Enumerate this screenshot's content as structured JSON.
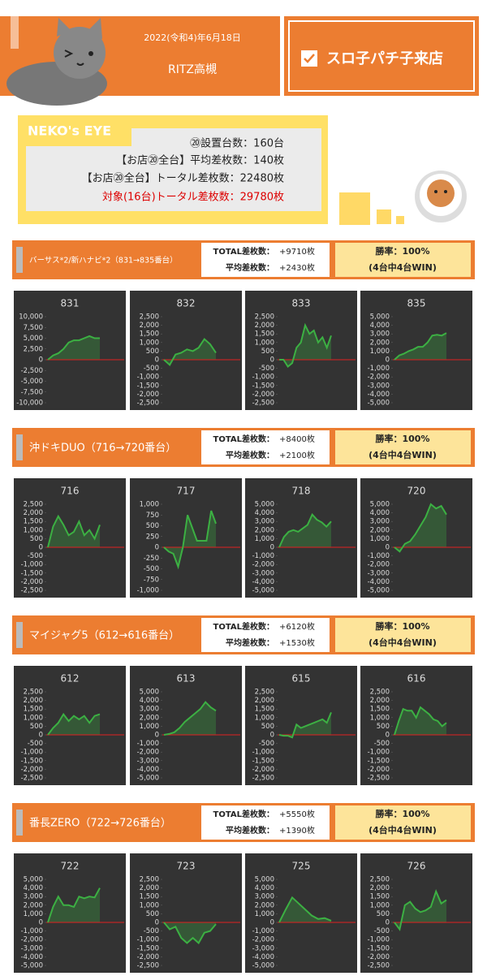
{
  "header": {
    "date": "2022(令和4)年6月18日",
    "store": "RITZ高槻",
    "event": "スロ子パチ子来店"
  },
  "neko": {
    "title": "NEKO's EYE",
    "lines": [
      "⑳設置台数：160台",
      "【お店⑳全台】平均差枚数：140枚",
      "【お店⑳全台】トータル差枚数：22480枚",
      "対象(16台)トータル差枚数：29780枚"
    ]
  },
  "sections": [
    {
      "title": "バーサス*2/新ハナビ*2（831→835番台）",
      "total_label": "TOTAL差枚数：",
      "total": "+9710枚",
      "avg_label": "平均差枚数：",
      "avg": "+2430枚",
      "win_rate": "勝率：100%",
      "win_note": "(4台中4台WIN)"
    },
    {
      "title": "沖ドキDUO（716→720番台）",
      "total_label": "TOTAL差枚数：",
      "total": "+8400枚",
      "avg_label": "平均差枚数：",
      "avg": "+2100枚",
      "win_rate": "勝率：100%",
      "win_note": "(4台中4台WIN)"
    },
    {
      "title": "マイジャグ5（612→616番台）",
      "total_label": "TOTAL差枚数：",
      "total": "+6120枚",
      "avg_label": "平均差枚数：",
      "avg": "+1530枚",
      "win_rate": "勝率：100%",
      "win_note": "(4台中4台WIN)"
    },
    {
      "title": "番長ZERO（722→726番台）",
      "total_label": "TOTAL差枚数：",
      "total": "+5550枚",
      "avg_label": "平均差枚数：",
      "avg": "+1390枚",
      "win_rate": "勝率：100%",
      "win_note": "(4台中4台WIN)"
    }
  ],
  "chart_data": [
    {
      "type": "line",
      "title": "831",
      "color": "#3cb043",
      "values": [
        0,
        1000,
        1500,
        2500,
        4000,
        4500,
        4500,
        5000,
        5500,
        5000,
        5000
      ],
      "ylim": [
        -10000,
        10000
      ],
      "yticks": [
        {
          "value": 10000,
          "label": "10,000"
        },
        {
          "value": 7500,
          "label": "7,500"
        },
        {
          "value": 5000,
          "label": "5,000"
        },
        {
          "value": 2500,
          "label": "2,500"
        },
        0,
        {
          "value": -2500,
          "label": "-2,500"
        },
        {
          "value": -5000,
          "label": "-5,000"
        },
        {
          "value": -7500,
          "label": "-7,500"
        },
        {
          "value": -10000,
          "label": "-10,000"
        }
      ]
    },
    {
      "type": "line",
      "title": "832",
      "color": "#3cb043",
      "values": [
        0,
        -300,
        300,
        400,
        600,
        500,
        700,
        1200,
        900,
        400
      ],
      "ylim": [
        -2500,
        2500
      ],
      "yticks": [
        {
          "value": 2500,
          "label": "2,500"
        },
        {
          "value": 2000,
          "label": "2,000"
        },
        {
          "value": 1500,
          "label": "1,500"
        },
        {
          "value": 1000,
          "label": "1,000"
        },
        500,
        0,
        -500,
        {
          "value": -1000,
          "label": "-1,000"
        },
        {
          "value": -1500,
          "label": "-1,500"
        },
        {
          "value": -2000,
          "label": "-2,000"
        },
        {
          "value": -2500,
          "label": "-2,500"
        }
      ]
    },
    {
      "type": "line",
      "title": "833",
      "color": "#3cb043",
      "values": [
        0,
        0,
        -400,
        -200,
        700,
        1000,
        2000,
        1500,
        1700,
        1000,
        1300,
        700,
        1400
      ],
      "ylim": [
        -2500,
        2500
      ],
      "yticks": [
        {
          "value": 2500,
          "label": "2,500"
        },
        {
          "value": 2000,
          "label": "2,000"
        },
        {
          "value": 1500,
          "label": "1,500"
        },
        {
          "value": 1000,
          "label": "1,000"
        },
        500,
        0,
        -500,
        {
          "value": -1000,
          "label": "-1,000"
        },
        {
          "value": -1500,
          "label": "-1,500"
        },
        {
          "value": -2000,
          "label": "-2,000"
        },
        {
          "value": -2500,
          "label": "-2,500"
        }
      ]
    },
    {
      "type": "line",
      "title": "835",
      "color": "#3cb043",
      "values": [
        0,
        500,
        700,
        1000,
        1200,
        1500,
        1500,
        2000,
        2800,
        2900,
        2800,
        3100
      ],
      "ylim": [
        -5000,
        5000
      ],
      "yticks": [
        {
          "value": 5000,
          "label": "5,000"
        },
        {
          "value": 4000,
          "label": "4,000"
        },
        {
          "value": 3000,
          "label": "3,000"
        },
        {
          "value": 2000,
          "label": "2,000"
        },
        {
          "value": 1000,
          "label": "1,000"
        },
        0,
        {
          "value": -1000,
          "label": "-1,000"
        },
        {
          "value": -2000,
          "label": "-2,000"
        },
        {
          "value": -3000,
          "label": "-3,000"
        },
        {
          "value": -4000,
          "label": "-4,000"
        },
        {
          "value": -5000,
          "label": "-5,000"
        }
      ]
    },
    {
      "type": "line",
      "title": "716",
      "color": "#3cb043",
      "values": [
        0,
        1200,
        1800,
        1300,
        700,
        900,
        1500,
        700,
        1000,
        500,
        1300
      ],
      "ylim": [
        -2500,
        2500
      ],
      "yticks": [
        {
          "value": 2500,
          "label": "2,500"
        },
        {
          "value": 2000,
          "label": "2,000"
        },
        {
          "value": 1500,
          "label": "1,500"
        },
        {
          "value": 1000,
          "label": "1,000"
        },
        500,
        0,
        -500,
        {
          "value": -1000,
          "label": "-1,000"
        },
        {
          "value": -1500,
          "label": "-1,500"
        },
        {
          "value": -2000,
          "label": "-2,000"
        },
        {
          "value": -2500,
          "label": "-2,500"
        }
      ]
    },
    {
      "type": "line",
      "title": "717",
      "color": "#3cb043",
      "values": [
        0,
        -100,
        -150,
        -450,
        0,
        750,
        450,
        150,
        150,
        150,
        850,
        550
      ],
      "ylim": [
        -1000,
        1000
      ],
      "yticks": [
        {
          "value": 1000,
          "label": "1,000"
        },
        750,
        500,
        250,
        0,
        -250,
        -500,
        -750,
        {
          "value": -1000,
          "label": "-1,000"
        }
      ]
    },
    {
      "type": "line",
      "title": "718",
      "color": "#3cb043",
      "values": [
        0,
        1200,
        1800,
        2000,
        1800,
        2200,
        2600,
        3800,
        3200,
        2900,
        2400,
        3000
      ],
      "ylim": [
        -5000,
        5000
      ],
      "yticks": [
        {
          "value": 5000,
          "label": "5,000"
        },
        {
          "value": 4000,
          "label": "4,000"
        },
        {
          "value": 3000,
          "label": "3,000"
        },
        {
          "value": 2000,
          "label": "2,000"
        },
        {
          "value": 1000,
          "label": "1,000"
        },
        0,
        {
          "value": -1000,
          "label": "-1,000"
        },
        {
          "value": -2000,
          "label": "-2,000"
        },
        {
          "value": -3000,
          "label": "-3,000"
        },
        {
          "value": -4000,
          "label": "-4,000"
        },
        {
          "value": -5000,
          "label": "-5,000"
        }
      ]
    },
    {
      "type": "line",
      "title": "720",
      "color": "#3cb043",
      "values": [
        0,
        -500,
        400,
        700,
        1500,
        2500,
        3500,
        5000,
        4500,
        4800,
        3800
      ],
      "ylim": [
        -5000,
        5000
      ],
      "yticks": [
        {
          "value": 5000,
          "label": "5,000"
        },
        {
          "value": 4000,
          "label": "4,000"
        },
        {
          "value": 3000,
          "label": "3,000"
        },
        {
          "value": 2000,
          "label": "2,000"
        },
        {
          "value": 1000,
          "label": "1,000"
        },
        0,
        {
          "value": -1000,
          "label": "-1,000"
        },
        {
          "value": -2000,
          "label": "-2,000"
        },
        {
          "value": -3000,
          "label": "-3,000"
        },
        {
          "value": -4000,
          "label": "-4,000"
        },
        {
          "value": -5000,
          "label": "-5,000"
        }
      ]
    },
    {
      "type": "line",
      "title": "612",
      "color": "#3cb043",
      "values": [
        0,
        400,
        700,
        1200,
        800,
        1100,
        900,
        1100,
        700,
        1100,
        1200
      ],
      "ylim": [
        -2500,
        2500
      ],
      "yticks": [
        {
          "value": 2500,
          "label": "2,500"
        },
        {
          "value": 2000,
          "label": "2,000"
        },
        {
          "value": 1500,
          "label": "1,500"
        },
        {
          "value": 1000,
          "label": "1,000"
        },
        500,
        0,
        -500,
        {
          "value": -1000,
          "label": "-1,000"
        },
        {
          "value": -1500,
          "label": "-1,500"
        },
        {
          "value": -2000,
          "label": "-2,000"
        },
        {
          "value": -2500,
          "label": "-2,500"
        }
      ]
    },
    {
      "type": "line",
      "title": "613",
      "color": "#3cb043",
      "values": [
        0,
        100,
        300,
        800,
        1500,
        2000,
        2500,
        3000,
        3800,
        3200,
        2800
      ],
      "ylim": [
        -5000,
        5000
      ],
      "yticks": [
        {
          "value": 5000,
          "label": "5,000"
        },
        {
          "value": 4000,
          "label": "4,000"
        },
        {
          "value": 3000,
          "label": "3,000"
        },
        {
          "value": 2000,
          "label": "2,000"
        },
        {
          "value": 1000,
          "label": "1,000"
        },
        0,
        {
          "value": -1000,
          "label": "-1,000"
        },
        {
          "value": -2000,
          "label": "-2,000"
        },
        {
          "value": -3000,
          "label": "-3,000"
        },
        {
          "value": -4000,
          "label": "-4,000"
        },
        {
          "value": -5000,
          "label": "-5,000"
        }
      ]
    },
    {
      "type": "line",
      "title": "615",
      "color": "#3cb043",
      "values": [
        0,
        -50,
        -50,
        -150,
        600,
        400,
        500,
        600,
        700,
        800,
        900,
        700,
        1300
      ],
      "ylim": [
        -2500,
        2500
      ],
      "yticks": [
        {
          "value": 2500,
          "label": "2,500"
        },
        {
          "value": 2000,
          "label": "2,000"
        },
        {
          "value": 1500,
          "label": "1,500"
        },
        {
          "value": 1000,
          "label": "1,000"
        },
        500,
        0,
        -500,
        {
          "value": -1000,
          "label": "-1,000"
        },
        {
          "value": -1500,
          "label": "-1,500"
        },
        {
          "value": -2000,
          "label": "-2,000"
        },
        {
          "value": -2500,
          "label": "-2,500"
        }
      ]
    },
    {
      "type": "line",
      "title": "616",
      "color": "#3cb043",
      "values": [
        0,
        800,
        1500,
        1400,
        1400,
        1000,
        1600,
        1400,
        1200,
        900,
        800,
        500,
        700
      ],
      "ylim": [
        -2500,
        2500
      ],
      "yticks": [
        {
          "value": 2500,
          "label": "2,500"
        },
        {
          "value": 2000,
          "label": "2,000"
        },
        {
          "value": 1500,
          "label": "1,500"
        },
        {
          "value": 1000,
          "label": "1,000"
        },
        500,
        0,
        -500,
        {
          "value": -1000,
          "label": "-1,000"
        },
        {
          "value": -1500,
          "label": "-1,500"
        },
        {
          "value": -2000,
          "label": "-2,000"
        },
        {
          "value": -2500,
          "label": "-2,500"
        }
      ]
    },
    {
      "type": "line",
      "title": "722",
      "color": "#3cb043",
      "values": [
        0,
        1800,
        3000,
        2000,
        2000,
        1800,
        3000,
        2800,
        3000,
        2900,
        4000
      ],
      "ylim": [
        -5000,
        5000
      ],
      "yticks": [
        {
          "value": 5000,
          "label": "5,000"
        },
        {
          "value": 4000,
          "label": "4,000"
        },
        {
          "value": 3000,
          "label": "3,000"
        },
        {
          "value": 2000,
          "label": "2,000"
        },
        {
          "value": 1000,
          "label": "1,000"
        },
        0,
        {
          "value": -1000,
          "label": "-1,000"
        },
        {
          "value": -2000,
          "label": "-2,000"
        },
        {
          "value": -3000,
          "label": "-3,000"
        },
        {
          "value": -4000,
          "label": "-4,000"
        },
        {
          "value": -5000,
          "label": "-5,000"
        }
      ]
    },
    {
      "type": "line",
      "title": "723",
      "color": "#3cb043",
      "values": [
        0,
        -400,
        -250,
        -900,
        -1200,
        -900,
        -1200,
        -600,
        -500,
        -100
      ],
      "ylim": [
        -2500,
        2500
      ],
      "yticks": [
        {
          "value": 2500,
          "label": "2,500"
        },
        {
          "value": 2000,
          "label": "2,000"
        },
        {
          "value": 1500,
          "label": "1,500"
        },
        {
          "value": 1000,
          "label": "1,000"
        },
        500,
        0,
        -500,
        {
          "value": -1000,
          "label": "-1,000"
        },
        {
          "value": -1500,
          "label": "-1,500"
        },
        {
          "value": -2000,
          "label": "-2,000"
        },
        {
          "value": -2500,
          "label": "-2,500"
        }
      ]
    },
    {
      "type": "line",
      "title": "725",
      "color": "#3cb043",
      "values": [
        0,
        1500,
        2900,
        2200,
        1500,
        800,
        400,
        500,
        200
      ],
      "ylim": [
        -5000,
        5000
      ],
      "yticks": [
        {
          "value": 5000,
          "label": "5,000"
        },
        {
          "value": 4000,
          "label": "4,000"
        },
        {
          "value": 3000,
          "label": "3,000"
        },
        {
          "value": 2000,
          "label": "2,000"
        },
        {
          "value": 1000,
          "label": "1,000"
        },
        0,
        {
          "value": -1000,
          "label": "-1,000"
        },
        {
          "value": -2000,
          "label": "-2,000"
        },
        {
          "value": -3000,
          "label": "-3,000"
        },
        {
          "value": -4000,
          "label": "-4,000"
        },
        {
          "value": -5000,
          "label": "-5,000"
        }
      ]
    },
    {
      "type": "line",
      "title": "726",
      "color": "#3cb043",
      "values": [
        0,
        -400,
        1000,
        1200,
        800,
        600,
        700,
        900,
        1800,
        1100,
        1300
      ],
      "ylim": [
        -2500,
        2500
      ],
      "yticks": [
        {
          "value": 2500,
          "label": "2,500"
        },
        {
          "value": 2000,
          "label": "2,000"
        },
        {
          "value": 1500,
          "label": "1,500"
        },
        {
          "value": 1000,
          "label": "1,000"
        },
        500,
        0,
        -500,
        {
          "value": -1000,
          "label": "-1,000"
        },
        {
          "value": -1500,
          "label": "-1,500"
        },
        {
          "value": -2000,
          "label": "-2,000"
        },
        {
          "value": -2500,
          "label": "-2,500"
        }
      ]
    }
  ]
}
